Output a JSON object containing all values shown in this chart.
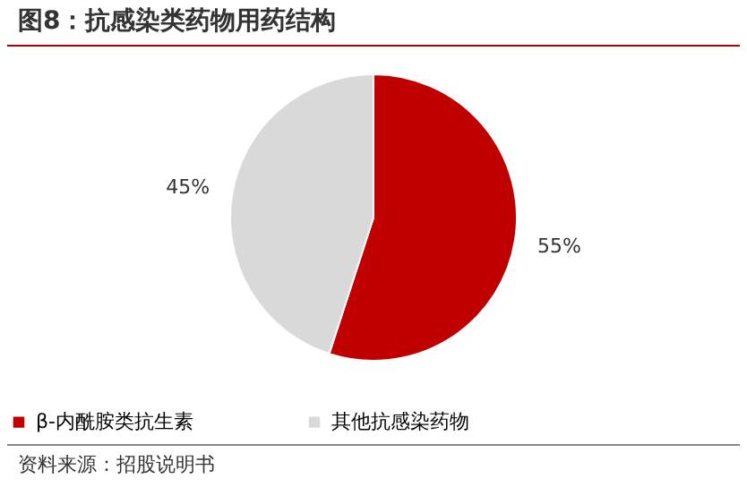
{
  "chart_data": {
    "type": "pie",
    "title": "图8：抗感染类药物用药结构",
    "categories": [
      "β-内酰胺类抗生素",
      "其他抗感染药物"
    ],
    "values": [
      55,
      45
    ],
    "colors": [
      "#c00000",
      "#d9d9d9"
    ],
    "value_labels": [
      "55%",
      "45%"
    ],
    "legend": "bottom",
    "annotations": [
      "资料来源：招股说明书"
    ]
  }
}
